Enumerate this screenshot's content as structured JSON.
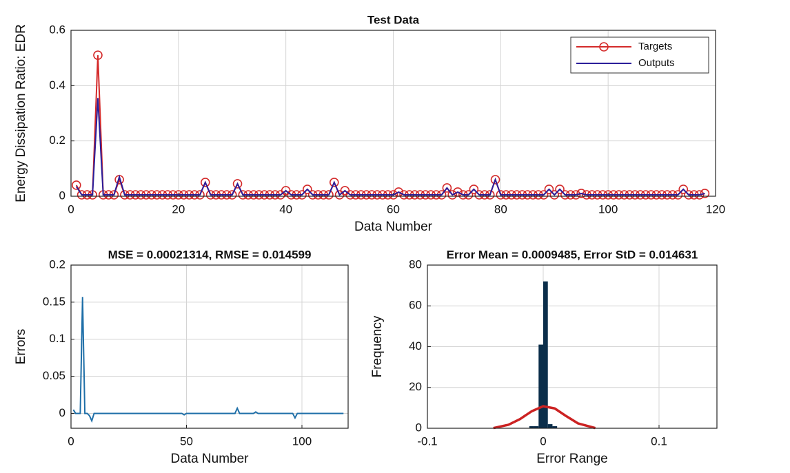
{
  "chart_data": [
    {
      "type": "line",
      "title": "Test Data",
      "xlabel": "Data Number",
      "ylabel": "Energy Dissipation Ratio: EDR",
      "x": [
        1,
        2,
        3,
        4,
        5,
        6,
        7,
        8,
        9,
        10,
        11,
        12,
        13,
        14,
        15,
        16,
        17,
        18,
        19,
        20,
        21,
        22,
        23,
        24,
        25,
        26,
        27,
        28,
        29,
        30,
        31,
        32,
        33,
        34,
        35,
        36,
        37,
        38,
        39,
        40,
        41,
        42,
        43,
        44,
        45,
        46,
        47,
        48,
        49,
        50,
        51,
        52,
        53,
        54,
        55,
        56,
        57,
        58,
        59,
        60,
        61,
        62,
        63,
        64,
        65,
        66,
        67,
        68,
        69,
        70,
        71,
        72,
        73,
        74,
        75,
        76,
        77,
        78,
        79,
        80,
        81,
        82,
        83,
        84,
        85,
        86,
        87,
        88,
        89,
        90,
        91,
        92,
        93,
        94,
        95,
        96,
        97,
        98,
        99,
        100,
        101,
        102,
        103,
        104,
        105,
        106,
        107,
        108,
        109,
        110,
        111,
        112,
        113,
        114,
        115,
        116,
        117,
        118
      ],
      "series": [
        {
          "name": "Targets",
          "color": "#d42a2a",
          "marker": "circle",
          "values": [
            0.04,
            0.005,
            0.005,
            0.005,
            0.51,
            0.005,
            0.005,
            0.005,
            0.06,
            0.005,
            0.005,
            0.005,
            0.005,
            0.005,
            0.005,
            0.005,
            0.005,
            0.005,
            0.005,
            0.005,
            0.005,
            0.005,
            0.005,
            0.005,
            0.05,
            0.005,
            0.005,
            0.005,
            0.005,
            0.005,
            0.045,
            0.005,
            0.005,
            0.005,
            0.005,
            0.005,
            0.005,
            0.005,
            0.005,
            0.02,
            0.005,
            0.005,
            0.005,
            0.025,
            0.005,
            0.005,
            0.005,
            0.005,
            0.05,
            0.005,
            0.02,
            0.005,
            0.005,
            0.005,
            0.005,
            0.005,
            0.005,
            0.005,
            0.005,
            0.005,
            0.015,
            0.005,
            0.005,
            0.005,
            0.005,
            0.005,
            0.005,
            0.005,
            0.005,
            0.03,
            0.005,
            0.015,
            0.005,
            0.005,
            0.025,
            0.005,
            0.005,
            0.005,
            0.06,
            0.005,
            0.005,
            0.005,
            0.005,
            0.005,
            0.005,
            0.005,
            0.005,
            0.005,
            0.025,
            0.005,
            0.025,
            0.005,
            0.005,
            0.005,
            0.01,
            0.005,
            0.005,
            0.005,
            0.005,
            0.005,
            0.005,
            0.005,
            0.005,
            0.005,
            0.005,
            0.005,
            0.005,
            0.005,
            0.005,
            0.005,
            0.005,
            0.005,
            0.005,
            0.025,
            0.005,
            0.005,
            0.005,
            0.01
          ]
        },
        {
          "name": "Outputs",
          "color": "#2b1e9a",
          "values": [
            0.035,
            0.005,
            0.005,
            0.005,
            0.355,
            0.005,
            0.005,
            0.005,
            0.07,
            0.005,
            0.005,
            0.005,
            0.005,
            0.005,
            0.005,
            0.005,
            0.005,
            0.005,
            0.005,
            0.005,
            0.005,
            0.005,
            0.005,
            0.005,
            0.05,
            0.005,
            0.005,
            0.005,
            0.005,
            0.005,
            0.045,
            0.005,
            0.005,
            0.005,
            0.005,
            0.005,
            0.005,
            0.005,
            0.005,
            0.02,
            0.005,
            0.005,
            0.005,
            0.025,
            0.005,
            0.005,
            0.005,
            0.005,
            0.05,
            0.005,
            0.02,
            0.005,
            0.005,
            0.005,
            0.005,
            0.005,
            0.005,
            0.005,
            0.005,
            0.005,
            0.015,
            0.005,
            0.005,
            0.005,
            0.005,
            0.005,
            0.005,
            0.005,
            0.005,
            0.03,
            0.005,
            0.015,
            0.005,
            0.005,
            0.025,
            0.005,
            0.005,
            0.005,
            0.06,
            0.005,
            0.005,
            0.005,
            0.005,
            0.005,
            0.005,
            0.005,
            0.005,
            0.005,
            0.025,
            0.005,
            0.025,
            0.005,
            0.005,
            0.005,
            0.01,
            0.005,
            0.005,
            0.005,
            0.005,
            0.005,
            0.005,
            0.005,
            0.005,
            0.005,
            0.005,
            0.005,
            0.005,
            0.005,
            0.005,
            0.005,
            0.005,
            0.005,
            0.005,
            0.025,
            0.005,
            0.005,
            0.005,
            0.01
          ]
        }
      ],
      "xlim": [
        0,
        120
      ],
      "xticks": [
        0,
        20,
        40,
        60,
        80,
        100,
        120
      ],
      "ylim": [
        0,
        0.6
      ],
      "yticks": [
        0,
        0.2,
        0.4,
        0.6
      ],
      "grid": true,
      "legend": "upper right"
    },
    {
      "type": "line",
      "title": "MSE = 0.00021314, RMSE = 0.014599",
      "xlabel": "Data Number",
      "ylabel": "Errors",
      "x": [
        1,
        2,
        3,
        4,
        5,
        6,
        7,
        8,
        9,
        10,
        11,
        12,
        13,
        14,
        15,
        16,
        17,
        18,
        19,
        20,
        21,
        22,
        23,
        24,
        25,
        26,
        27,
        28,
        29,
        30,
        31,
        32,
        33,
        34,
        35,
        36,
        37,
        38,
        39,
        40,
        41,
        42,
        43,
        44,
        45,
        46,
        47,
        48,
        49,
        50,
        51,
        52,
        53,
        54,
        55,
        56,
        57,
        58,
        59,
        60,
        61,
        62,
        63,
        64,
        65,
        66,
        67,
        68,
        69,
        70,
        71,
        72,
        73,
        74,
        75,
        76,
        77,
        78,
        79,
        80,
        81,
        82,
        83,
        84,
        85,
        86,
        87,
        88,
        89,
        90,
        91,
        92,
        93,
        94,
        95,
        96,
        97,
        98,
        99,
        100,
        101,
        102,
        103,
        104,
        105,
        106,
        107,
        108,
        109,
        110,
        111,
        112,
        113,
        114,
        115,
        116,
        117,
        118
      ],
      "series": [
        {
          "name": "Errors",
          "color": "#1f6fa8",
          "values": [
            0.005,
            0,
            0,
            0,
            0.157,
            0,
            0,
            -0.003,
            -0.01,
            0,
            0,
            0,
            0,
            0,
            0,
            0,
            0,
            0,
            0,
            0,
            0,
            0,
            0,
            0,
            0,
            0,
            0,
            0,
            0,
            0,
            0,
            0,
            0,
            0,
            0,
            0,
            0,
            0,
            0,
            0,
            0,
            0,
            0,
            0,
            0,
            0,
            0,
            0,
            -0.002,
            0,
            0,
            0,
            0,
            0,
            0,
            0,
            0,
            0,
            0,
            0,
            0,
            0,
            0,
            0,
            0,
            0,
            0,
            0,
            0,
            0,
            0,
            0.007,
            0,
            0,
            0,
            0,
            0,
            0,
            0,
            0.002,
            0,
            0,
            0,
            0,
            0,
            0,
            0,
            0,
            0,
            0,
            0,
            0,
            0,
            0,
            0,
            0,
            -0.006,
            0,
            0,
            0,
            0,
            0,
            0,
            0,
            0,
            0,
            0,
            0,
            0,
            0,
            0,
            0,
            0,
            0,
            0,
            0,
            0,
            0
          ]
        }
      ],
      "xlim": [
        0,
        120
      ],
      "xticks": [
        0,
        50,
        100
      ],
      "ylim": [
        -0.02,
        0.2
      ],
      "yticks": [
        0,
        0.05,
        0.1,
        0.15,
        0.2
      ],
      "grid": true
    },
    {
      "type": "histogram",
      "title": "Error Mean = 0.0009485, Error StD = 0.014631",
      "xlabel": "Error Range",
      "ylabel": "Frequency",
      "bins": [
        -0.012,
        -0.008,
        -0.004,
        0,
        0.004,
        0.008,
        0.012
      ],
      "counts": [
        1,
        1,
        41,
        72,
        2,
        1
      ],
      "color": "#0b2e4a",
      "fit_curve": {
        "color": "#cc2222",
        "x": [
          -0.043,
          -0.03,
          -0.02,
          -0.01,
          0,
          0.01,
          0.02,
          0.03,
          0.045
        ],
        "values": [
          0.1,
          1.7,
          4.5,
          8.3,
          10.8,
          9.7,
          5.9,
          2.4,
          0.1
        ]
      },
      "xlim": [
        -0.1,
        0.15
      ],
      "xticks": [
        -0.1,
        0,
        0.1
      ],
      "ylim": [
        0,
        80
      ],
      "yticks": [
        0,
        20,
        40,
        60,
        80
      ],
      "grid": true
    }
  ]
}
